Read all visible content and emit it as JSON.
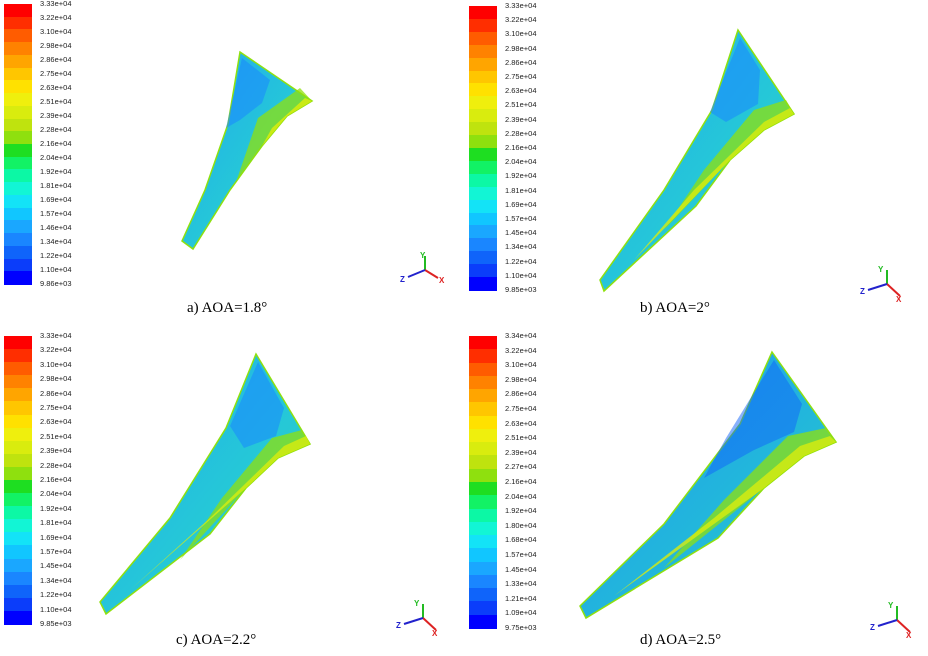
{
  "colors": {
    "colormap": [
      "#0000ff",
      "#0b3dfa",
      "#0f64fa",
      "#1a86ff",
      "#1aa7ff",
      "#11c6ff",
      "#13e3f7",
      "#12f5d5",
      "#0cf8a5",
      "#12f265",
      "#1ede21",
      "#8fe00e",
      "#bfe30e",
      "#d9ec0e",
      "#efef0d",
      "#ffe100",
      "#ffc600",
      "#ffa500",
      "#ff8200",
      "#ff5c00",
      "#ff2e00",
      "#ff0000"
    ],
    "axis_y": "#22bb22",
    "axis_x": "#dd2222",
    "axis_z": "#2222cc"
  },
  "panels": [
    {
      "id": "a",
      "caption": "a) AOA=1.8°",
      "ticks": [
        "3.33e+04",
        "3.22e+04",
        "3.10e+04",
        "2.98e+04",
        "2.86e+04",
        "2.75e+04",
        "2.63e+04",
        "2.51e+04",
        "2.39e+04",
        "2.28e+04",
        "2.16e+04",
        "2.04e+04",
        "1.92e+04",
        "1.81e+04",
        "1.69e+04",
        "1.57e+04",
        "1.46e+04",
        "1.34e+04",
        "1.22e+04",
        "1.10e+04",
        "9.86e+03"
      ]
    },
    {
      "id": "b",
      "caption": "b) AOA=2°",
      "ticks": [
        "3.33e+04",
        "3.22e+04",
        "3.10e+04",
        "2.98e+04",
        "2.86e+04",
        "2.75e+04",
        "2.63e+04",
        "2.51e+04",
        "2.39e+04",
        "2.28e+04",
        "2.16e+04",
        "2.04e+04",
        "1.92e+04",
        "1.81e+04",
        "1.69e+04",
        "1.57e+04",
        "1.45e+04",
        "1.34e+04",
        "1.22e+04",
        "1.10e+04",
        "9.85e+03"
      ]
    },
    {
      "id": "c",
      "caption": "c) AOA=2.2°",
      "ticks": [
        "3.33e+04",
        "3.22e+04",
        "3.10e+04",
        "2.98e+04",
        "2.86e+04",
        "2.75e+04",
        "2.63e+04",
        "2.51e+04",
        "2.39e+04",
        "2.28e+04",
        "2.16e+04",
        "2.04e+04",
        "1.92e+04",
        "1.81e+04",
        "1.69e+04",
        "1.57e+04",
        "1.45e+04",
        "1.34e+04",
        "1.22e+04",
        "1.10e+04",
        "9.85e+03"
      ]
    },
    {
      "id": "d",
      "caption": "d) AOA=2.5°",
      "ticks": [
        "3.34e+04",
        "3.22e+04",
        "3.10e+04",
        "2.98e+04",
        "2.86e+04",
        "2.75e+04",
        "2.63e+04",
        "2.51e+04",
        "2.39e+04",
        "2.27e+04",
        "2.16e+04",
        "2.04e+04",
        "1.92e+04",
        "1.80e+04",
        "1.68e+04",
        "1.57e+04",
        "1.45e+04",
        "1.33e+04",
        "1.21e+04",
        "1.09e+04",
        "9.75e+03"
      ]
    }
  ],
  "triad": {
    "y": "Y",
    "x": "X",
    "z": "Z"
  }
}
